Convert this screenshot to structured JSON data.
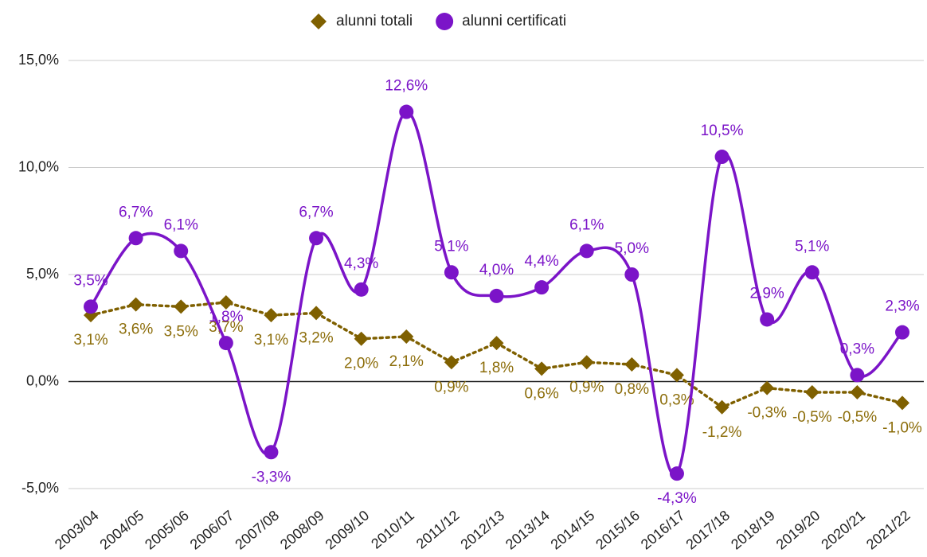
{
  "chart_data": {
    "type": "line",
    "categories": [
      "2003/04",
      "2004/05",
      "2005/06",
      "2006/07",
      "2007/08",
      "2008/09",
      "2009/10",
      "2010/11",
      "2011/12",
      "2012/13",
      "2013/14",
      "2014/15",
      "2015/16",
      "2016/17",
      "2017/18",
      "2018/19",
      "2019/20",
      "2020/21",
      "2021/22"
    ],
    "series": [
      {
        "name": "alunni totali",
        "color": "#7f6000",
        "marker": "diamond",
        "line": "dotted",
        "values": [
          3.1,
          3.6,
          3.5,
          3.7,
          3.1,
          3.2,
          2.0,
          2.1,
          0.9,
          1.8,
          0.6,
          0.9,
          0.8,
          0.3,
          -1.2,
          -0.3,
          -0.5,
          -0.5,
          -1.0
        ],
        "value_labels": [
          "3,1%",
          "3,6%",
          "3,5%",
          "3,7%",
          "3,1%",
          "3,2%",
          "2,0%",
          "2,1%",
          "0,9%",
          "1,8%",
          "0,6%",
          "0,9%",
          "0,8%",
          "0,3%",
          "-1,2%",
          "-0,3%",
          "-0,5%",
          "-0,5%",
          "-1,0%"
        ]
      },
      {
        "name": "alunni certificati",
        "color": "#7b14c8",
        "marker": "circle",
        "line": "smooth",
        "values": [
          3.5,
          6.7,
          6.1,
          1.8,
          -3.3,
          6.7,
          4.3,
          12.6,
          5.1,
          4.0,
          4.4,
          6.1,
          5.0,
          -4.3,
          10.5,
          2.9,
          5.1,
          0.3,
          2.3
        ],
        "value_labels": [
          "3,5%",
          "6,7%",
          "6,1%",
          "1,8%",
          "-3,3%",
          "6,7%",
          "4,3%",
          "12,6%",
          "5,1%",
          "4,0%",
          "4,4%",
          "6,1%",
          "5,0%",
          "-4,3%",
          "10,5%",
          "2,9%",
          "5,1%",
          "0,3%",
          "2,3%"
        ]
      }
    ],
    "ylim": [
      -5,
      15
    ],
    "yticks": [
      {
        "value": -5,
        "label": "-5,0%"
      },
      {
        "value": 0,
        "label": "0,0%"
      },
      {
        "value": 5,
        "label": "5,0%"
      },
      {
        "value": 10,
        "label": "10,0%"
      },
      {
        "value": 15,
        "label": "15,0%"
      }
    ],
    "grid": true,
    "legend": "top"
  }
}
